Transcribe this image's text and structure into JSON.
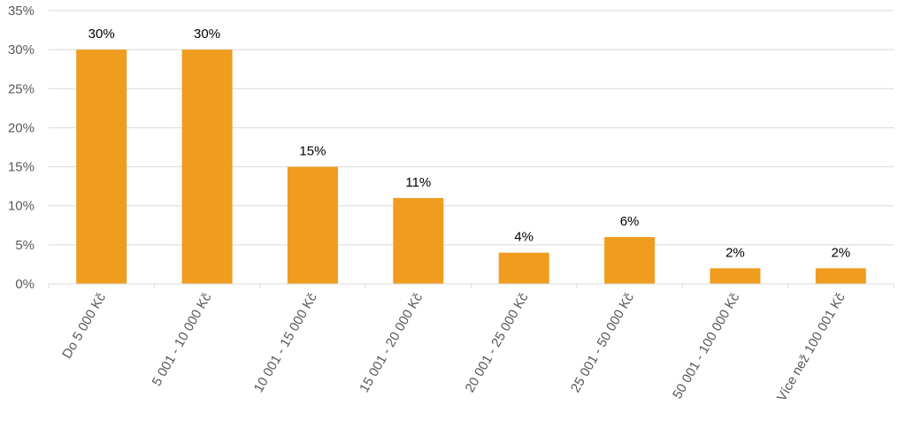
{
  "chart_data": {
    "type": "bar",
    "categories": [
      "Do 5 000 Kč",
      "5 001 - 10 000 Kč",
      "10 001 - 15 000 Kč",
      "15 001 - 20 000 Kč",
      "20 001 - 25 000 Kč",
      "25 001 - 50 000 Kč",
      "50 001 - 100 000 Kč",
      "Více než 100 001 Kč"
    ],
    "values": [
      30,
      30,
      15,
      11,
      4,
      6,
      2,
      2
    ],
    "data_labels": [
      "30%",
      "30%",
      "15%",
      "11%",
      "4%",
      "6%",
      "2%",
      "2%"
    ],
    "y_ticks": [
      "0%",
      "5%",
      "10%",
      "15%",
      "20%",
      "25%",
      "30%",
      "35%"
    ],
    "ylim": [
      0,
      35
    ],
    "title": "",
    "xlabel": "",
    "ylabel": "",
    "grid": true,
    "bar_color": "#F09C1F"
  }
}
